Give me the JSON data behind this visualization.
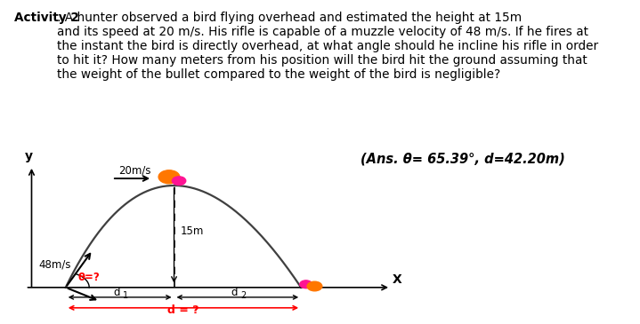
{
  "title_bold": "Activity 2",
  "title_rest": ". A hunter observed a bird flying overhead and estimated the height at 15m\nand its speed at 20 m/s. His rifle is capable of a muzzle velocity of 48 m/s. If he fires at\nthe instant the bird is directly overhead, at what angle should he incline his rifle in order\nto hit it? How many meters from his position will the bird hit the ground assuming that\nthe weight of the bullet compared to the weight of the bird is negligible?",
  "answer_text": "(Ans. θ= 65.39°, d=42.20m)",
  "bg_color": "#ffffff",
  "hunter_x": 0.55,
  "hunter_y": 0.0,
  "bird_peak_x": 2.3,
  "bird_peak_y": 2.6,
  "bird_land_x": 4.35,
  "bird_land_y": 0.0,
  "height_label": "15m",
  "speed_label": "20m/s",
  "rifle_label": "48m/s",
  "angle_label": "θ=?",
  "d1_label": "d",
  "d1_sub": "1",
  "d2_label": "d",
  "d2_sub": "2",
  "d_label": "d = ?",
  "x_axis_label": "X",
  "y_axis_label": "y",
  "xlim": [
    -0.2,
    6.0
  ],
  "ylim": [
    -0.85,
    3.2
  ]
}
